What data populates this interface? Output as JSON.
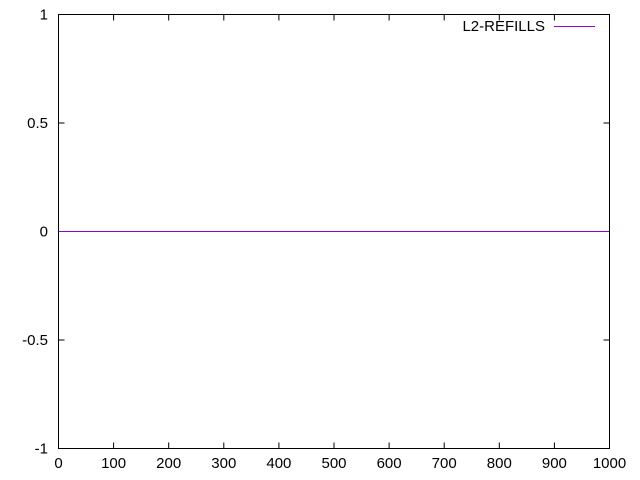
{
  "chart_data": {
    "type": "line",
    "title": "",
    "xlabel": "",
    "ylabel": "",
    "xlim": [
      0,
      1000
    ],
    "ylim": [
      -1,
      1
    ],
    "x_ticks": [
      0,
      100,
      200,
      300,
      400,
      500,
      600,
      700,
      800,
      900,
      1000
    ],
    "y_ticks": [
      -1,
      -0.5,
      0,
      0.5,
      1
    ],
    "x_tick_labels": [
      "0",
      "100",
      "200",
      "300",
      "400",
      "500",
      "600",
      "700",
      "800",
      "900",
      "1000"
    ],
    "y_tick_labels": [
      "-1",
      "-0.5",
      "0",
      "0.5",
      "1"
    ],
    "grid": false,
    "legend_position": "top-right",
    "series": [
      {
        "name": "L2-REFILLS",
        "color": "#9400d3",
        "x": [
          0,
          1000
        ],
        "y": [
          0,
          0
        ]
      }
    ]
  }
}
